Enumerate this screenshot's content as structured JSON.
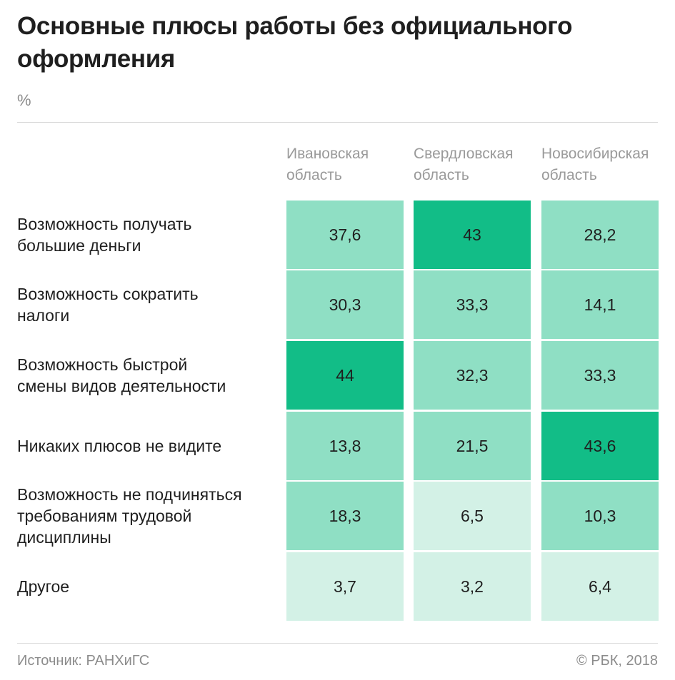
{
  "title": "Основные плюсы работы без официального оформления",
  "unit": "%",
  "source": "Источник: РАНХиГС",
  "copyright": "© РБК, 2018",
  "colors": {
    "dark": "#12bd87",
    "mid": "#8fdfc4",
    "light": "#d3f1e6"
  },
  "chart_data": {
    "type": "heatmap",
    "columns": [
      "Ивановская область",
      "Свердловская область",
      "Новосибирская область"
    ],
    "column_lines": [
      [
        "Ивановская",
        "область"
      ],
      [
        "Свердловская",
        "область"
      ],
      [
        "Новосибирская",
        "область"
      ]
    ],
    "rows": [
      {
        "label": "Возможность получать большие деньги",
        "lines": [
          "Возможность получать",
          "большие деньги"
        ],
        "values": [
          37.6,
          43,
          28.2
        ],
        "display": [
          "37,6",
          "43",
          "28,2"
        ]
      },
      {
        "label": "Возможность сократить налоги",
        "lines": [
          "Возможность сократить",
          "налоги"
        ],
        "values": [
          30.3,
          33.3,
          14.1
        ],
        "display": [
          "30,3",
          "33,3",
          "14,1"
        ]
      },
      {
        "label": "Возможность быстрой смены видов деятельности",
        "lines": [
          "Возможность быстрой",
          "смены видов деятельности"
        ],
        "values": [
          44,
          32.3,
          33.3
        ],
        "display": [
          "44",
          "32,3",
          "33,3"
        ]
      },
      {
        "label": "Никаких плюсов не видите",
        "lines": [
          "Никаких плюсов не видите"
        ],
        "values": [
          13.8,
          21.5,
          43.6
        ],
        "display": [
          "13,8",
          "21,5",
          "43,6"
        ]
      },
      {
        "label": "Возможность не подчиняться требованиям трудовой дисциплины",
        "lines": [
          "Возможность не подчиняться",
          "требованиям трудовой",
          "дисциплины"
        ],
        "values": [
          18.3,
          6.5,
          10.3
        ],
        "display": [
          "18,3",
          "6,5",
          "10,3"
        ]
      },
      {
        "label": "Другое",
        "lines": [
          "Другое"
        ],
        "values": [
          3.7,
          3.2,
          6.4
        ],
        "display": [
          "3,7",
          "3,2",
          "6,4"
        ]
      }
    ]
  }
}
